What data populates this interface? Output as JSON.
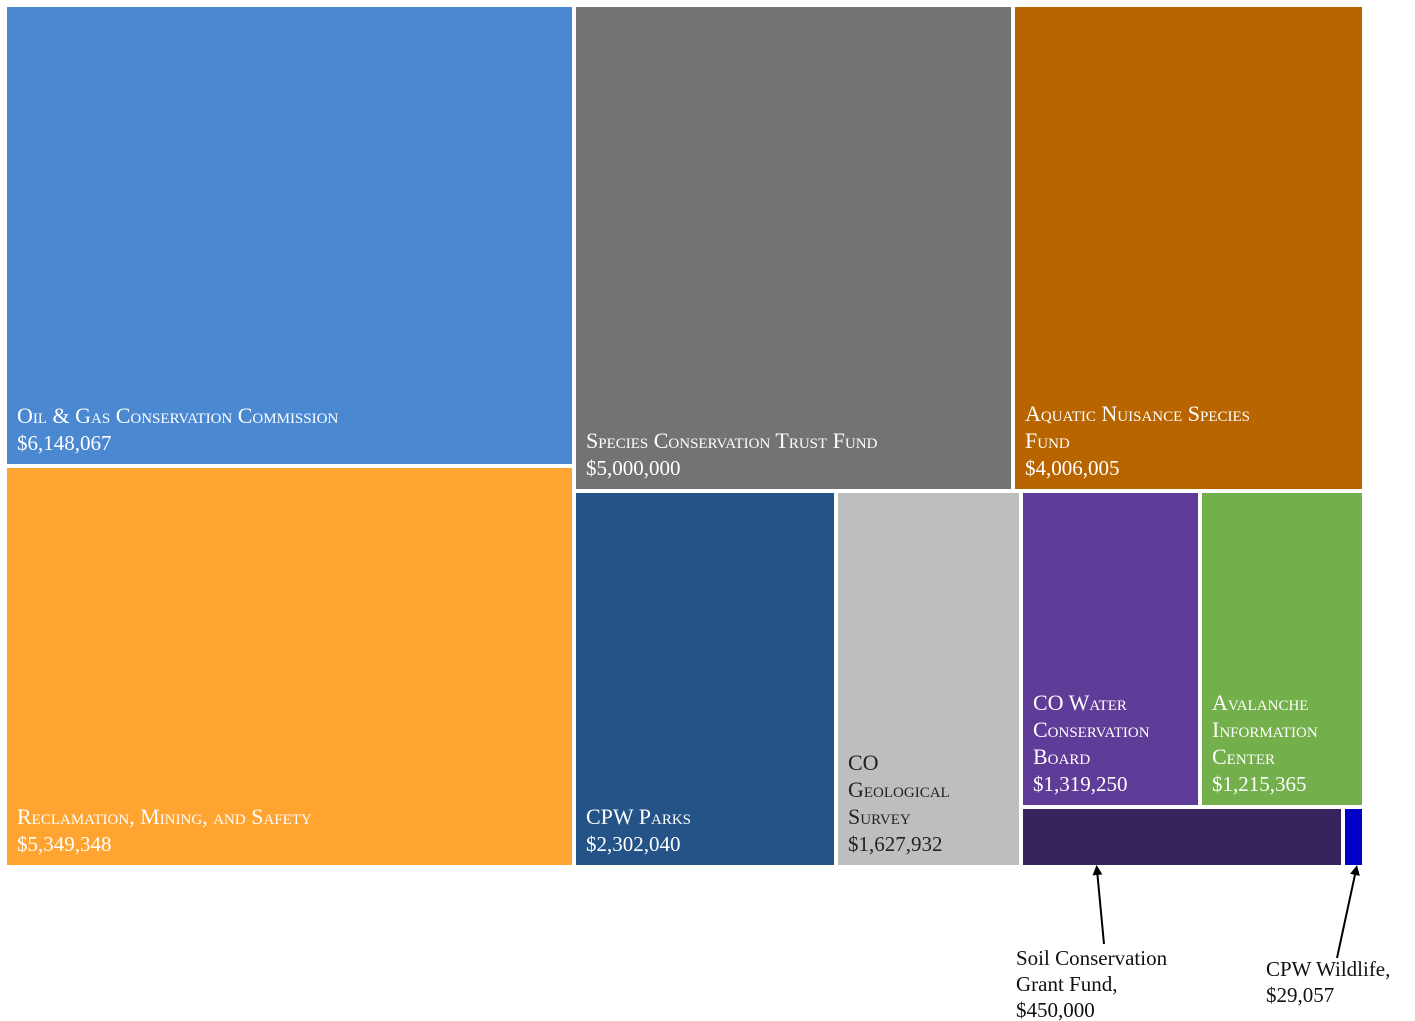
{
  "chart_data": {
    "type": "treemap",
    "title": "",
    "items": [
      {
        "name": "Oil & Gas Conservation Commission",
        "label_lines": [
          "Oil & Gas Conservation Commission"
        ],
        "value": 6148067,
        "value_label": "$6,148,067",
        "color": "#4A88D2"
      },
      {
        "name": "Reclamation, Mining, and Safety",
        "label_lines": [
          "Reclamation, Mining, and Safety"
        ],
        "value": 5349348,
        "value_label": "$5,349,348",
        "color": "#FFA431"
      },
      {
        "name": "Species Conservation Trust Fund",
        "label_lines": [
          "Species Conservation Trust Fund"
        ],
        "value": 5000000,
        "value_label": "$5,000,000",
        "color": "#737373"
      },
      {
        "name": "Aquatic Nuisance Species Fund",
        "label_lines": [
          "Aquatic Nuisance Species",
          "Fund"
        ],
        "value": 4006005,
        "value_label": "$4,006,005",
        "color": "#B86500"
      },
      {
        "name": "CPW Parks",
        "label_lines": [
          "CPW Parks"
        ],
        "value": 2302040,
        "value_label": "$2,302,040",
        "color": "#235387"
      },
      {
        "name": "CO Geological Survey",
        "label_lines": [
          "CO",
          "Geological",
          "Survey"
        ],
        "value": 1627932,
        "value_label": "$1,627,932",
        "color": "#BEBEBE",
        "dark_text": true
      },
      {
        "name": "CO Water Conservation Board",
        "label_lines": [
          "CO Water",
          "Conservation",
          "Board"
        ],
        "value": 1319250,
        "value_label": "$1,319,250",
        "color": "#603C99"
      },
      {
        "name": "Avalanche Information Center",
        "label_lines": [
          "Avalanche",
          "Information",
          "Center"
        ],
        "value": 1215365,
        "value_label": "$1,215,365",
        "color": "#73AF4A"
      },
      {
        "name": "Soil Conservation Grant Fund",
        "callout_lines": [
          "Soil Conservation",
          "Grant Fund,",
          "$450,000"
        ],
        "value": 450000,
        "value_label": "$450,000",
        "color": "#37245D"
      },
      {
        "name": "CPW Wildlife",
        "callout_lines": [
          "CPW Wildlife,",
          "$29,057"
        ],
        "value": 29057,
        "value_label": "$29,057",
        "color": "#0000C8"
      }
    ]
  }
}
